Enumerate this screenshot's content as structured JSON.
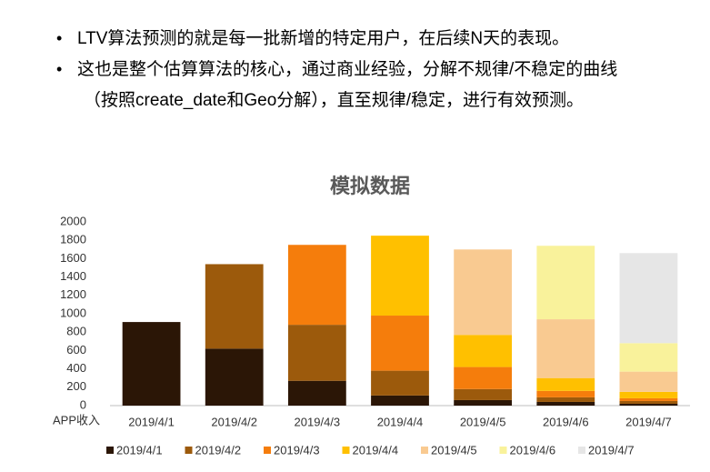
{
  "bullets": [
    [
      "LTV算法预测的就是每一批新增的特定用户，在后续N天的表现。"
    ],
    [
      "这也是整个估算算法的核心，通过商业经验，分解不规律/不稳定的曲线",
      "（按照create_date和Geo分解），直至规律/稳定，进行有效预测。"
    ]
  ],
  "chart_data": {
    "type": "stacked-bar",
    "title": "模拟数据",
    "x_label": "APP收入",
    "categories": [
      "2019/4/1",
      "2019/4/2",
      "2019/4/3",
      "2019/4/4",
      "2019/4/5",
      "2019/4/6",
      "2019/4/7"
    ],
    "series": [
      {
        "name": "2019/4/1",
        "color": "#2b1606",
        "values": [
          910,
          620,
          270,
          110,
          60,
          40,
          20
        ]
      },
      {
        "name": "2019/4/2",
        "color": "#9c5a0c",
        "values": [
          null,
          920,
          610,
          270,
          120,
          50,
          30
        ]
      },
      {
        "name": "2019/4/3",
        "color": "#f57d0c",
        "values": [
          null,
          null,
          870,
          600,
          240,
          70,
          30
        ]
      },
      {
        "name": "2019/4/4",
        "color": "#ffc000",
        "values": [
          null,
          null,
          null,
          870,
          350,
          140,
          70
        ]
      },
      {
        "name": "2019/4/5",
        "color": "#f9ca91",
        "values": [
          null,
          null,
          null,
          null,
          930,
          640,
          220
        ]
      },
      {
        "name": "2019/4/6",
        "color": "#f9f29b",
        "values": [
          null,
          null,
          null,
          null,
          null,
          800,
          310
        ]
      },
      {
        "name": "2019/4/7",
        "color": "#e6e6e6",
        "values": [
          null,
          null,
          null,
          null,
          null,
          null,
          980
        ]
      }
    ],
    "ylim": [
      0,
      2000
    ],
    "yticks": [
      0,
      200,
      400,
      600,
      800,
      1000,
      1200,
      1400,
      1600,
      1800,
      2000
    ],
    "grid": false
  }
}
